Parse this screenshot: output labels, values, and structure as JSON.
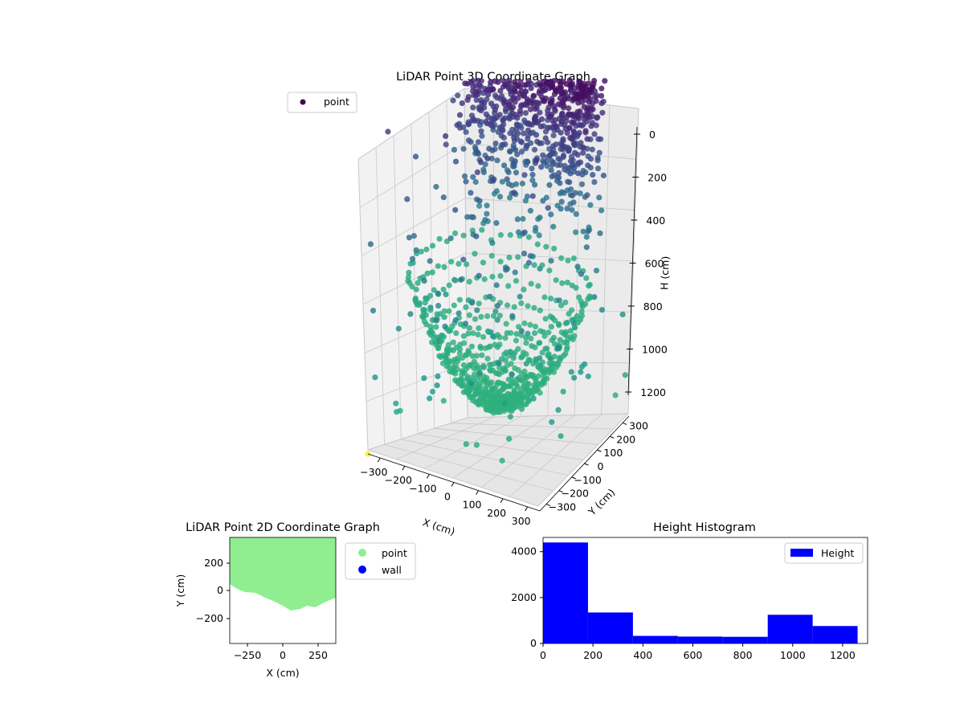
{
  "chart_data": [
    {
      "type": "scatter3d",
      "title": "LiDAR Point 3D Coordinate Graph",
      "xlabel": "X (cm)",
      "ylabel": "Y (cm)",
      "zlabel": "H (cm)",
      "x_ticks": [
        "−300",
        "−200",
        "−100",
        "0",
        "100",
        "200",
        "300"
      ],
      "y_ticks": [
        "−300",
        "−200",
        "−100",
        "0",
        "100",
        "200",
        "300"
      ],
      "z_ticks": [
        "0",
        "200",
        "400",
        "600",
        "800",
        "1000",
        "1200"
      ],
      "z_inverted": true,
      "colormap": "viridis",
      "legend": [
        "point"
      ],
      "legend_position": "upper-left",
      "grid": true
    },
    {
      "type": "scatter",
      "title": "LiDAR Point 2D Coordinate Graph",
      "xlabel": "X (cm)",
      "ylabel": "Y (cm)",
      "x_ticks": [
        "−250",
        "0",
        "250"
      ],
      "y_ticks": [
        "200",
        "0",
        "−200"
      ],
      "series": [
        {
          "name": "point",
          "color": "#90ee90"
        },
        {
          "name": "wall",
          "color": "#0000ff"
        }
      ],
      "legend_position": "outside-right"
    },
    {
      "type": "bar",
      "title": "Height Histogram",
      "series_name": "Height",
      "color": "#0000ff",
      "bins": [
        {
          "from": 0,
          "to": 180,
          "count": 4400
        },
        {
          "from": 180,
          "to": 360,
          "count": 1350
        },
        {
          "from": 360,
          "to": 540,
          "count": 330
        },
        {
          "from": 540,
          "to": 720,
          "count": 300
        },
        {
          "from": 720,
          "to": 900,
          "count": 290
        },
        {
          "from": 900,
          "to": 1080,
          "count": 1250
        },
        {
          "from": 1080,
          "to": 1260,
          "count": 760
        }
      ],
      "xlim": [
        0,
        1300
      ],
      "ylim": [
        0,
        4620
      ],
      "x_ticks": [
        "0",
        "200",
        "400",
        "600",
        "800",
        "1000",
        "1200"
      ],
      "y_ticks": [
        "0",
        "2000",
        "4000"
      ],
      "legend_position": "upper-right"
    }
  ]
}
